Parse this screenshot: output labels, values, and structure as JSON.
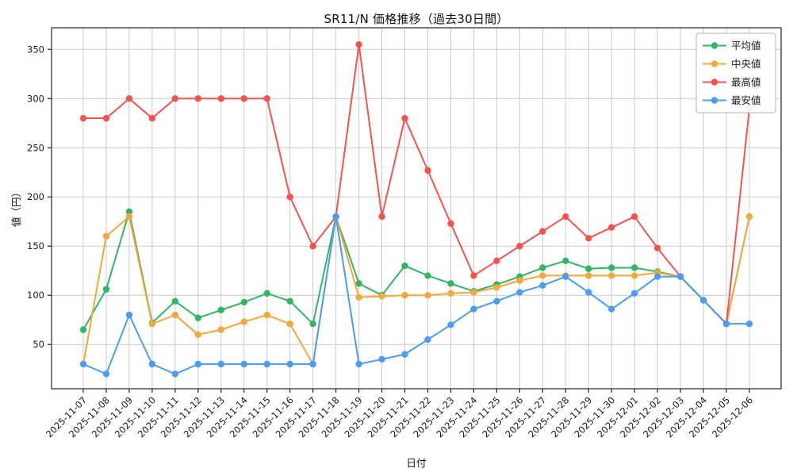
{
  "chart_data": {
    "type": "line",
    "title": "SR11/N 価格推移（過去30日間）",
    "xlabel": "日付",
    "ylabel": "値（円）",
    "ylim": [
      5,
      372
    ],
    "yticks": [
      50,
      100,
      150,
      200,
      250,
      300,
      350
    ],
    "grid": true,
    "legend_position": "upper right",
    "grid_color": "#cccccc",
    "axis_color": "#262626",
    "categories": [
      "2025-11-07",
      "2025-11-08",
      "2025-11-09",
      "2025-11-10",
      "2025-11-11",
      "2025-11-12",
      "2025-11-13",
      "2025-11-14",
      "2025-11-15",
      "2025-11-16",
      "2025-11-17",
      "2025-11-18",
      "2025-11-19",
      "2025-11-20",
      "2025-11-21",
      "2025-11-22",
      "2025-11-23",
      "2025-11-24",
      "2025-11-25",
      "2025-11-26",
      "2025-11-27",
      "2025-11-28",
      "2025-11-29",
      "2025-11-30",
      "2025-12-01",
      "2025-12-02",
      "2025-12-03",
      "2025-12-04",
      "2025-12-05",
      "2025-12-06"
    ],
    "series": [
      {
        "name": "平均値",
        "key": "average",
        "color": "#33b564",
        "values": [
          65,
          106,
          185,
          72,
          94,
          77,
          85,
          93,
          102,
          94,
          71,
          180,
          112,
          100,
          130,
          120,
          112,
          104,
          111,
          119,
          128,
          135,
          127,
          128,
          128,
          124,
          119,
          95,
          71,
          180
        ]
      },
      {
        "name": "中央値",
        "key": "median",
        "color": "#f3a83b",
        "values": [
          30,
          160,
          180,
          71,
          80,
          60,
          65,
          73,
          80,
          71,
          30,
          180,
          98,
          99,
          100,
          100,
          102,
          103,
          108,
          115,
          120,
          120,
          120,
          120,
          120,
          123,
          119,
          95,
          71,
          180
        ]
      },
      {
        "name": "最高値",
        "key": "max",
        "color": "#f4534e",
        "values": [
          280,
          280,
          300,
          280,
          300,
          300,
          300,
          300,
          300,
          200,
          150,
          180,
          355,
          180,
          280,
          227,
          173,
          120,
          135,
          150,
          165,
          180,
          158,
          169,
          180,
          148,
          119,
          95,
          71,
          290
        ]
      },
      {
        "name": "最安値",
        "key": "min",
        "color": "#4a9df0",
        "values": [
          30,
          20,
          80,
          30,
          20,
          30,
          30,
          30,
          30,
          30,
          30,
          180,
          30,
          35,
          40,
          55,
          70,
          86,
          94,
          103,
          110,
          119,
          103,
          86,
          102,
          119,
          119,
          95,
          71,
          71
        ]
      }
    ]
  }
}
